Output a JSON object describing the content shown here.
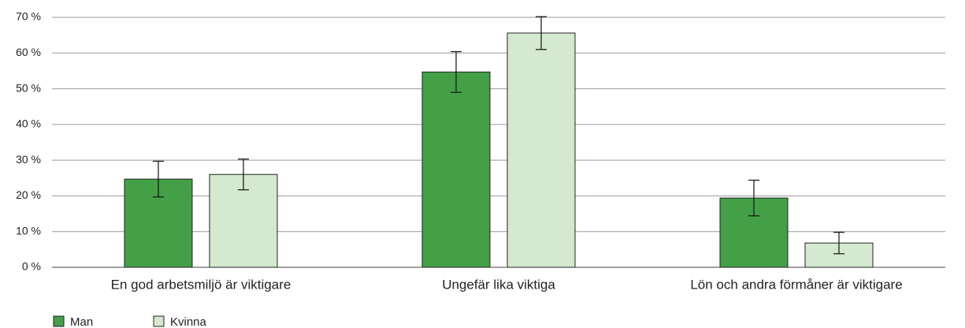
{
  "chart_data": {
    "type": "bar",
    "categories": [
      "En god arbetsmiljö är viktigare",
      "Ungefär lika viktiga",
      "Lön och andra förmåner är viktigare"
    ],
    "series": [
      {
        "name": "Man",
        "color": "#43a047",
        "values": [
          24.7,
          54.7,
          19.4
        ],
        "errors": [
          5.0,
          5.7,
          5.0
        ]
      },
      {
        "name": "Kvinna",
        "color": "#d4e9cf",
        "values": [
          26.0,
          65.6,
          6.8
        ],
        "errors": [
          4.3,
          4.6,
          3.0
        ]
      }
    ],
    "ylim": [
      0,
      70
    ],
    "yticks": [
      {
        "value": 0,
        "label": "0 %"
      },
      {
        "value": 10,
        "label": "10 %"
      },
      {
        "value": 20,
        "label": "20 %"
      },
      {
        "value": 30,
        "label": "30 %"
      },
      {
        "value": 40,
        "label": "40 %"
      },
      {
        "value": 50,
        "label": "50 %"
      },
      {
        "value": 60,
        "label": "60 %"
      },
      {
        "value": 70,
        "label": "70 %"
      }
    ],
    "grid": true,
    "legend": "bottom-left"
  }
}
